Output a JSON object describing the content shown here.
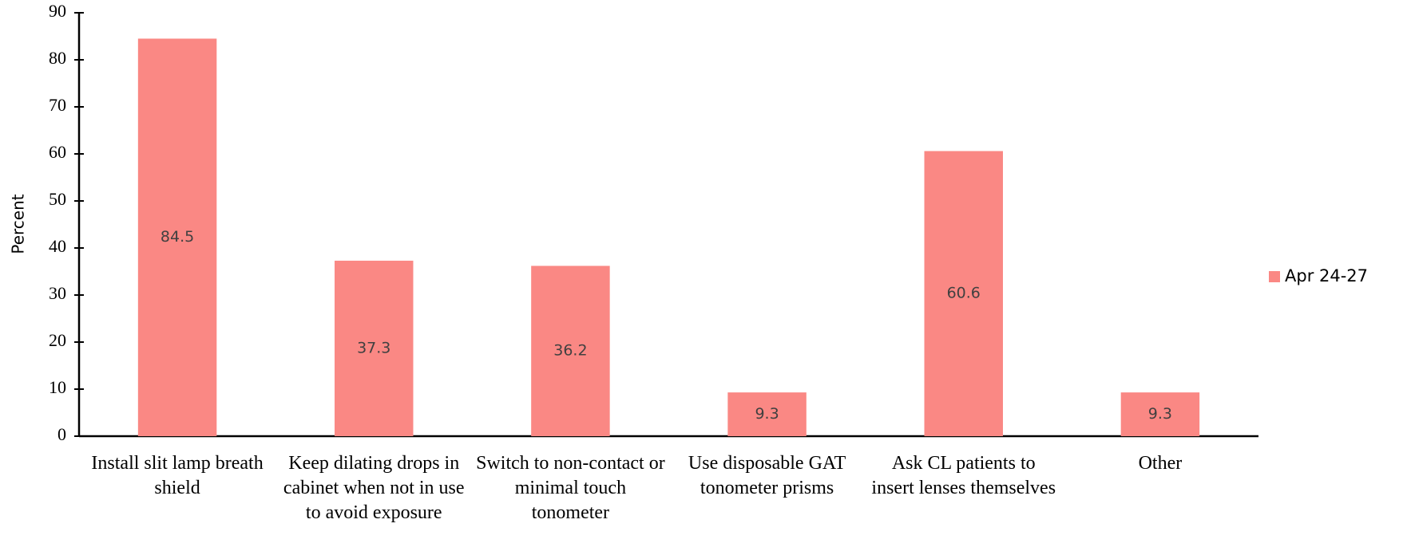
{
  "chart_data": {
    "type": "bar",
    "y_label": "Percent",
    "categories": [
      "Install slit lamp breath shield",
      "Keep dilating drops in cabinet when not in use to avoid exposure",
      "Switch to non-contact or minimal touch tonometer",
      "Use disposable GAT tonometer prisms",
      "Ask CL patients to insert lenses themselves",
      "Other"
    ],
    "series": [
      {
        "name": "Apr 24-27",
        "color": "#fa8884",
        "values": [
          84.5,
          37.3,
          36.2,
          9.3,
          60.6,
          9.3
        ]
      }
    ],
    "ylim": [
      0,
      90
    ],
    "yticks": [
      0,
      10,
      20,
      30,
      40,
      50,
      60,
      70,
      80,
      90
    ],
    "legend": "right"
  }
}
